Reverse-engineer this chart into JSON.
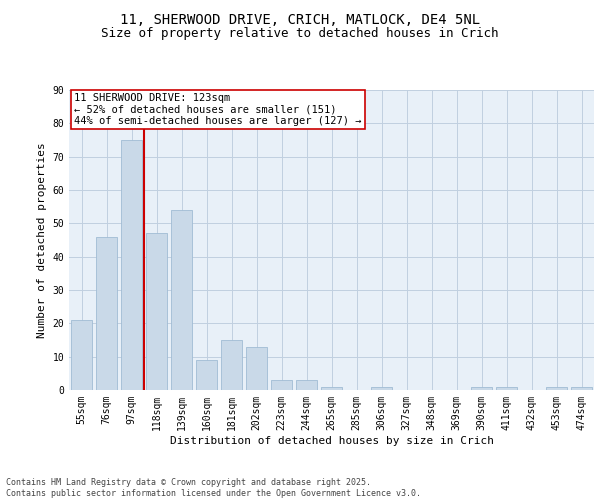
{
  "title1": "11, SHERWOOD DRIVE, CRICH, MATLOCK, DE4 5NL",
  "title2": "Size of property relative to detached houses in Crich",
  "xlabel": "Distribution of detached houses by size in Crich",
  "ylabel": "Number of detached properties",
  "categories": [
    "55sqm",
    "76sqm",
    "97sqm",
    "118sqm",
    "139sqm",
    "160sqm",
    "181sqm",
    "202sqm",
    "223sqm",
    "244sqm",
    "265sqm",
    "285sqm",
    "306sqm",
    "327sqm",
    "348sqm",
    "369sqm",
    "390sqm",
    "411sqm",
    "432sqm",
    "453sqm",
    "474sqm"
  ],
  "values": [
    21,
    46,
    75,
    47,
    54,
    9,
    15,
    13,
    3,
    3,
    1,
    0,
    1,
    0,
    0,
    0,
    1,
    1,
    0,
    1,
    1
  ],
  "bar_color": "#c9d9e8",
  "bar_edge_color": "#a0bcd4",
  "grid_color": "#c0cfe0",
  "bg_color": "#e8f0f8",
  "vline_x_index": 3,
  "vline_color": "#cc0000",
  "annotation_text": "11 SHERWOOD DRIVE: 123sqm\n← 52% of detached houses are smaller (151)\n44% of semi-detached houses are larger (127) →",
  "annotation_box_color": "#ffffff",
  "annotation_box_edge": "#cc0000",
  "ylim": [
    0,
    90
  ],
  "yticks": [
    0,
    10,
    20,
    30,
    40,
    50,
    60,
    70,
    80,
    90
  ],
  "footer": "Contains HM Land Registry data © Crown copyright and database right 2025.\nContains public sector information licensed under the Open Government Licence v3.0.",
  "title1_fontsize": 10,
  "title2_fontsize": 9,
  "axis_label_fontsize": 8,
  "tick_fontsize": 7,
  "annotation_fontsize": 7.5,
  "footer_fontsize": 6
}
